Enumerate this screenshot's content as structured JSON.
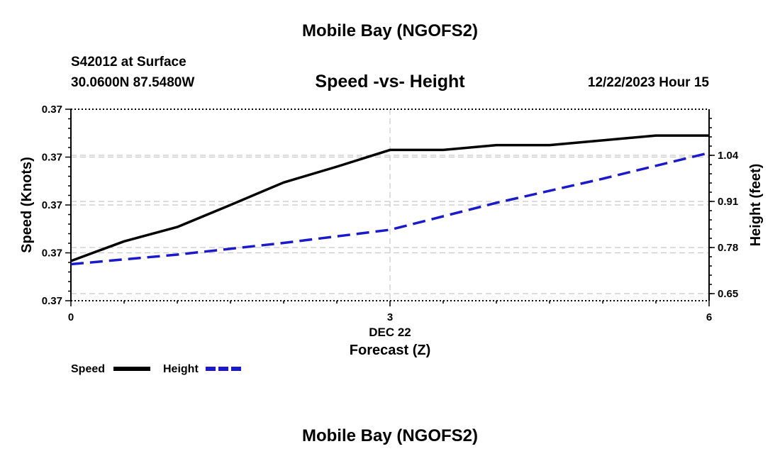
{
  "title": "Mobile Bay (NGOFS2)",
  "footer_title": "Mobile Bay (NGOFS2)",
  "station": "S42012 at Surface",
  "coords": "30.0600N  87.5480W",
  "datetime": "12/22/2023 Hour 15",
  "colors": {
    "speed": "#000000",
    "height": "#1a1acc",
    "grid": "#c8c8c8"
  },
  "chart_data": {
    "type": "line",
    "title": "Speed -vs- Height",
    "xlabel": "Forecast (Z)",
    "x_date_label": "DEC 22",
    "xlim": [
      0,
      6
    ],
    "x_ticks": [
      {
        "value": 0,
        "label": "0"
      },
      {
        "value": 3,
        "label": "3"
      },
      {
        "value": 6,
        "label": "6"
      }
    ],
    "y_left": {
      "label": "Speed (Knots)",
      "range": [
        0,
        4
      ],
      "ticks": [
        {
          "value": 0,
          "label": "0.37"
        },
        {
          "value": 1,
          "label": "0.37"
        },
        {
          "value": 2,
          "label": "0.37"
        },
        {
          "value": 3,
          "label": "0.37"
        },
        {
          "value": 4,
          "label": "0.37"
        }
      ]
    },
    "y_right": {
      "label": "Height (feet)",
      "range": [
        0.63,
        1.17
      ],
      "ticks": [
        {
          "value": 0.65,
          "label": "0.65"
        },
        {
          "value": 0.78,
          "label": "0.78"
        },
        {
          "value": 0.91,
          "label": "0.91"
        },
        {
          "value": 1.04,
          "label": "1.04"
        }
      ]
    },
    "series": [
      {
        "name": "Speed",
        "axis": "left",
        "style": "solid",
        "x": [
          0,
          0.5,
          1,
          1.5,
          2,
          2.5,
          3,
          3.5,
          4,
          4.5,
          5,
          5.5,
          6
        ],
        "values": [
          0.83,
          1.24,
          1.54,
          2.0,
          2.47,
          2.8,
          3.15,
          3.15,
          3.25,
          3.25,
          3.35,
          3.45,
          3.45
        ]
      },
      {
        "name": "Height",
        "axis": "right",
        "style": "dashed",
        "x": [
          0,
          1,
          2,
          3,
          4,
          5,
          6
        ],
        "values": [
          0.733,
          0.76,
          0.793,
          0.83,
          0.906,
          0.974,
          1.047
        ]
      }
    ],
    "legend": [
      {
        "name": "Speed",
        "label": "Speed"
      },
      {
        "name": "Height",
        "label": "Height"
      }
    ]
  }
}
